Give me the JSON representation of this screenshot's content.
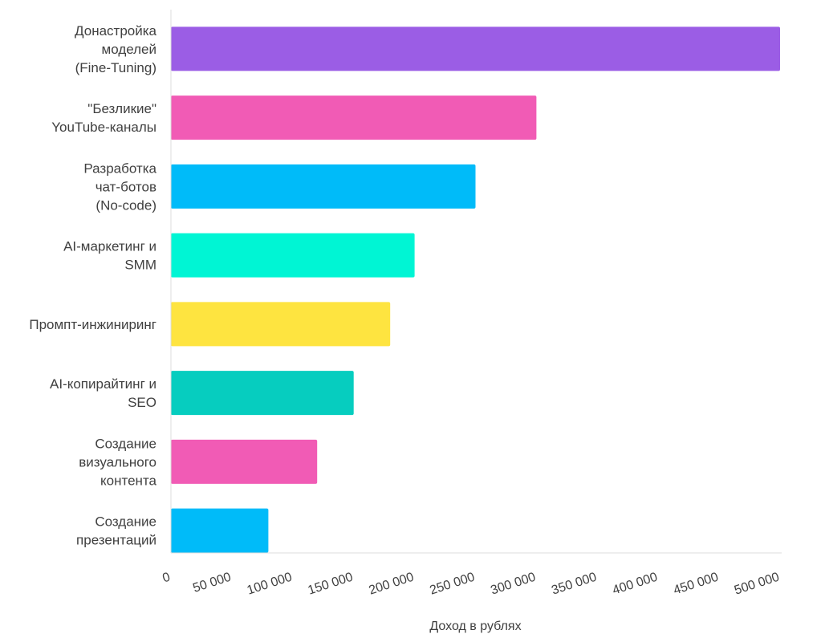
{
  "chart_data": {
    "type": "bar",
    "orientation": "horizontal",
    "categories": [
      "Донастройка моделей (Fine-Tuning)",
      "\"Безликие\" YouTube-каналы",
      "Разработка чат-ботов (No-code)",
      "AI-маркетинг и SMM",
      "Промпт-инжиниринг",
      "AI-копирайтинг и SEO",
      "Создание визуального контента",
      "Создание презентаций"
    ],
    "category_lines": [
      [
        "Донастройка",
        "моделей",
        "(Fine-Tuning)"
      ],
      [
        "\"Безликие\"",
        "YouTube-каналы"
      ],
      [
        "Разработка",
        "чат-ботов",
        "(No-code)"
      ],
      [
        "AI-маркетинг и",
        "SMM"
      ],
      [
        "Промпт-инжиниринг"
      ],
      [
        "AI-копирайтинг и",
        "SEO"
      ],
      [
        "Создание",
        "визуального",
        "контента"
      ],
      [
        "Создание",
        "презентаций"
      ]
    ],
    "values": [
      500000,
      300000,
      250000,
      200000,
      180000,
      150000,
      120000,
      80000
    ],
    "colors": [
      "#9B5DE5",
      "#F15BB5",
      "#00BBF9",
      "#00F5D4",
      "#FEE440",
      "#06CDBF",
      "#F15BB5",
      "#00BBF9"
    ],
    "xlabel": "Доход в рублях",
    "ylabel": "",
    "xlim": [
      0,
      500000
    ],
    "x_ticks": [
      0,
      50000,
      100000,
      150000,
      200000,
      250000,
      300000,
      350000,
      400000,
      450000,
      500000
    ],
    "x_tick_labels": [
      "0",
      "50 000",
      "100 000",
      "150 000",
      "200 000",
      "250 000",
      "300 000",
      "350 000",
      "400 000",
      "450 000",
      "500 000"
    ],
    "grid": false
  }
}
